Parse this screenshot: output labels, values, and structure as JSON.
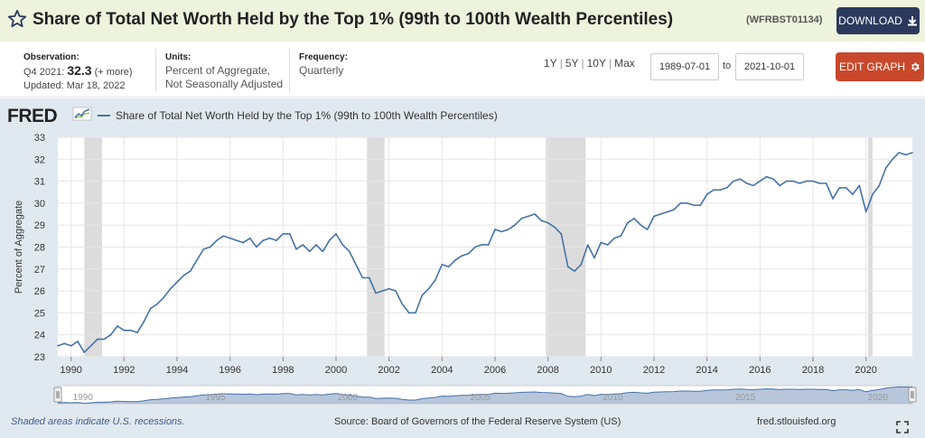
{
  "header": {
    "title": "Share of Total Net Worth Held by the Top 1% (99th to 100th Wealth Percentiles)",
    "series_id": "(WFRBST01134)",
    "download_label": "DOWNLOAD",
    "star_icon": "star-outline-icon",
    "download_icon": "download-icon"
  },
  "meta": {
    "observation_label": "Observation:",
    "observation_period": "Q4 2021:",
    "observation_value": "32.3",
    "observation_more": "(+ more)",
    "updated": "Updated: Mar 18, 2022",
    "units_label": "Units:",
    "units_line1": "Percent of Aggregate,",
    "units_line2": "Not Seasonally Adjusted",
    "frequency_label": "Frequency:",
    "frequency_value": "Quarterly"
  },
  "controls": {
    "range_1y": "1Y",
    "range_5y": "5Y",
    "range_10y": "10Y",
    "range_max": "Max",
    "start_date": "1989-07-01",
    "to_label": "to",
    "end_date": "2021-10-01",
    "edit_label": "EDIT GRAPH",
    "edit_icon": "gear-icon"
  },
  "chart": {
    "logo": "FRED",
    "legend": "Share of Total Net Worth Held by the Top 1% (99th to 100th Wealth Percentiles)",
    "footer_left": "Shaded areas indicate U.S. recessions.",
    "footer_mid": "Source: Board of Governors of the Federal Reserve System (US)",
    "footer_right": "fred.stlouisfed.org",
    "line_color": "#4572a7",
    "recession_color": "#dcdcdc"
  },
  "chart_data": {
    "type": "line",
    "title": "",
    "xlabel": "",
    "ylabel": "Percent of Aggregate",
    "xlim": [
      1989.5,
      2021.75
    ],
    "ylim": [
      23,
      33
    ],
    "y_ticks": [
      23,
      24,
      25,
      26,
      27,
      28,
      29,
      30,
      31,
      32,
      33
    ],
    "x_ticks": [
      1990,
      1992,
      1994,
      1996,
      1998,
      2000,
      2002,
      2004,
      2006,
      2008,
      2010,
      2012,
      2014,
      2016,
      2018,
      2020
    ],
    "x_tick_labels": [
      "1990",
      "1992",
      "1994",
      "1996",
      "1998",
      "2000",
      "2002",
      "2004",
      "2006",
      "2008",
      "2010",
      "2012",
      "2014",
      "2016",
      "2018",
      "2020"
    ],
    "navigator_labels": [
      "1990",
      "1995",
      "2000",
      "2005",
      "2010",
      "2015",
      "2020"
    ],
    "navigator_ticks": [
      1990,
      1995,
      2000,
      2005,
      2010,
      2015,
      2020
    ],
    "grid": true,
    "legend_position": "top-left",
    "recessions": [
      [
        1990.5,
        1991.17
      ],
      [
        2001.17,
        2001.83
      ],
      [
        2007.92,
        2009.42
      ],
      [
        2020.08,
        2020.25
      ]
    ],
    "series": [
      {
        "name": "Share of Total Net Worth Held by the Top 1% (99th to 100th Wealth Percentiles)",
        "x": [
          1989.5,
          1989.75,
          1990.0,
          1990.25,
          1990.5,
          1990.75,
          1991.0,
          1991.25,
          1991.5,
          1991.75,
          1992.0,
          1992.25,
          1992.5,
          1992.75,
          1993.0,
          1993.25,
          1993.5,
          1993.75,
          1994.0,
          1994.25,
          1994.5,
          1994.75,
          1995.0,
          1995.25,
          1995.5,
          1995.75,
          1996.0,
          1996.25,
          1996.5,
          1996.75,
          1997.0,
          1997.25,
          1997.5,
          1997.75,
          1998.0,
          1998.25,
          1998.5,
          1998.75,
          1999.0,
          1999.25,
          1999.5,
          1999.75,
          2000.0,
          2000.25,
          2000.5,
          2000.75,
          2001.0,
          2001.25,
          2001.5,
          2001.75,
          2002.0,
          2002.25,
          2002.5,
          2002.75,
          2003.0,
          2003.25,
          2003.5,
          2003.75,
          2004.0,
          2004.25,
          2004.5,
          2004.75,
          2005.0,
          2005.25,
          2005.5,
          2005.75,
          2006.0,
          2006.25,
          2006.5,
          2006.75,
          2007.0,
          2007.25,
          2007.5,
          2007.75,
          2008.0,
          2008.25,
          2008.5,
          2008.75,
          2009.0,
          2009.25,
          2009.5,
          2009.75,
          2010.0,
          2010.25,
          2010.5,
          2010.75,
          2011.0,
          2011.25,
          2011.5,
          2011.75,
          2012.0,
          2012.25,
          2012.5,
          2012.75,
          2013.0,
          2013.25,
          2013.5,
          2013.75,
          2014.0,
          2014.25,
          2014.5,
          2014.75,
          2015.0,
          2015.25,
          2015.5,
          2015.75,
          2016.0,
          2016.25,
          2016.5,
          2016.75,
          2017.0,
          2017.25,
          2017.5,
          2017.75,
          2018.0,
          2018.25,
          2018.5,
          2018.75,
          2019.0,
          2019.25,
          2019.5,
          2019.75,
          2020.0,
          2020.25,
          2020.5,
          2020.75,
          2021.0,
          2021.25,
          2021.5,
          2021.75
        ],
        "values": [
          23.5,
          23.6,
          23.5,
          23.7,
          23.2,
          23.5,
          23.8,
          23.8,
          24.0,
          24.4,
          24.2,
          24.2,
          24.1,
          24.6,
          25.2,
          25.4,
          25.7,
          26.1,
          26.4,
          26.7,
          26.9,
          27.4,
          27.9,
          28.0,
          28.3,
          28.5,
          28.4,
          28.3,
          28.2,
          28.4,
          28.0,
          28.3,
          28.4,
          28.3,
          28.6,
          28.6,
          27.9,
          28.1,
          27.8,
          28.1,
          27.8,
          28.3,
          28.6,
          28.1,
          27.8,
          27.2,
          26.6,
          26.6,
          25.9,
          26.0,
          26.1,
          26.0,
          25.4,
          25.0,
          25.0,
          25.8,
          26.1,
          26.5,
          27.2,
          27.1,
          27.4,
          27.6,
          27.7,
          28.0,
          28.1,
          28.1,
          28.8,
          28.7,
          28.8,
          29.0,
          29.3,
          29.4,
          29.5,
          29.2,
          29.1,
          28.9,
          28.6,
          27.1,
          26.9,
          27.2,
          28.1,
          27.5,
          28.2,
          28.1,
          28.4,
          28.5,
          29.1,
          29.3,
          29.0,
          28.8,
          29.4,
          29.5,
          29.6,
          29.7,
          30.0,
          30.0,
          29.9,
          29.9,
          30.4,
          30.6,
          30.6,
          30.7,
          31.0,
          31.1,
          30.9,
          30.8,
          31.0,
          31.2,
          31.1,
          30.8,
          31.0,
          31.0,
          30.9,
          31.0,
          31.0,
          30.9,
          30.9,
          30.2,
          30.7,
          30.7,
          30.4,
          30.8,
          29.6,
          30.4,
          30.8,
          31.6,
          32.0,
          32.3,
          32.2,
          32.3
        ]
      }
    ]
  }
}
